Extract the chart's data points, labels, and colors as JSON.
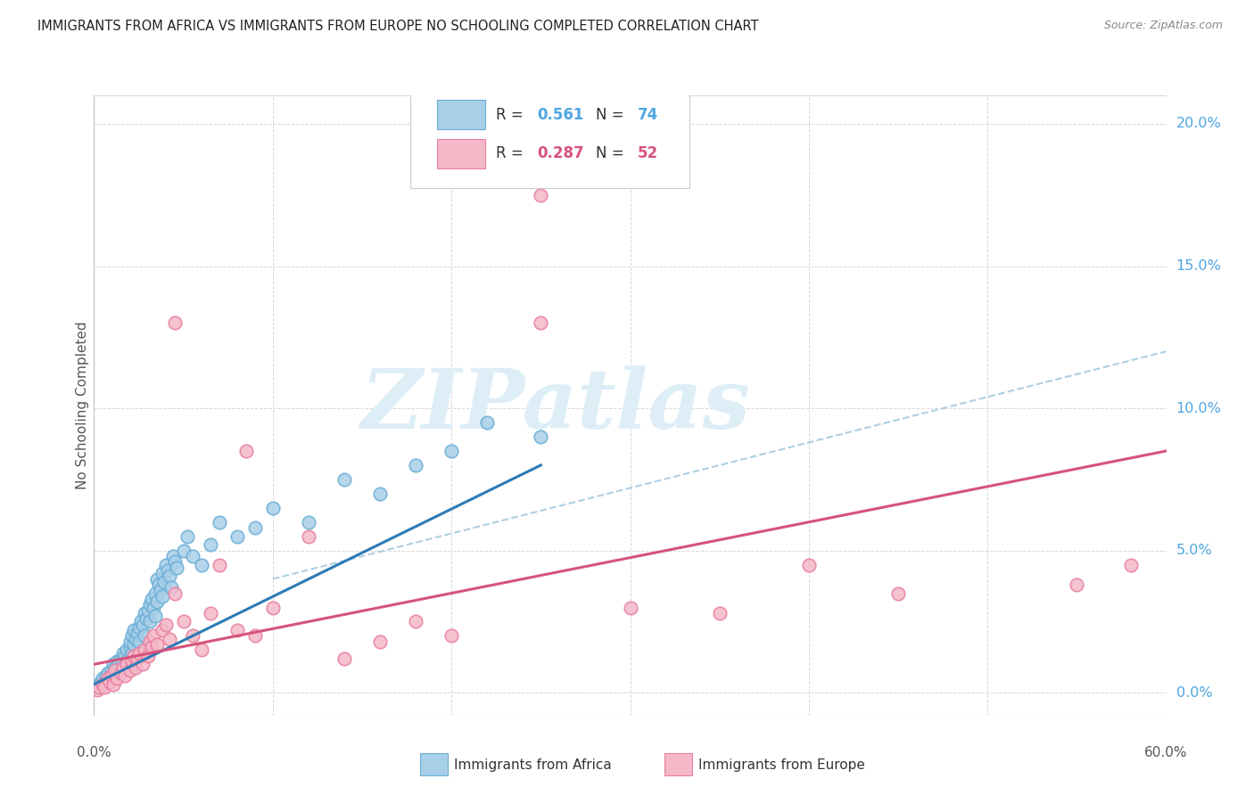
{
  "title": "IMMIGRANTS FROM AFRICA VS IMMIGRANTS FROM EUROPE NO SCHOOLING COMPLETED CORRELATION CHART",
  "source": "Source: ZipAtlas.com",
  "ylabel": "No Schooling Completed",
  "africa_R": 0.561,
  "africa_N": 74,
  "europe_R": 0.287,
  "europe_N": 52,
  "africa_color": "#a8cfe8",
  "africa_edge_color": "#6baed6",
  "europe_color": "#f4b8c8",
  "europe_edge_color": "#e87fa0",
  "africa_line_color": "#2c7bb6",
  "europe_line_color": "#d6537a",
  "africa_dashed_color": "#92bfd9",
  "grid_color": "#d8d8d8",
  "right_tick_color": "#4da6e0",
  "title_color": "#222222",
  "source_color": "#888888",
  "axis_label_color": "#555555",
  "watermark_color": "#ddeef7",
  "legend_bg": "#ffffff",
  "legend_edge": "#cccccc",
  "xmin": 0.0,
  "xmax": 60.0,
  "ymin": -0.8,
  "ymax": 21.0,
  "y_right_ticks": [
    0.0,
    5.0,
    10.0,
    15.0,
    20.0
  ],
  "x_grid_ticks": [
    0,
    10,
    20,
    30,
    40,
    50,
    60
  ],
  "africa_line_x0": 0.0,
  "africa_line_y0": 0.3,
  "africa_line_x1": 25.0,
  "africa_line_y1": 8.0,
  "africa_dash_x0": 10.0,
  "africa_dash_y0": 4.0,
  "africa_dash_x1": 60.0,
  "africa_dash_y1": 12.0,
  "europe_line_x0": 0.0,
  "europe_line_y0": 1.0,
  "europe_line_x1": 60.0,
  "europe_line_y1": 8.5,
  "africa_x": [
    0.2,
    0.3,
    0.4,
    0.5,
    0.6,
    0.7,
    0.8,
    0.9,
    1.0,
    1.1,
    1.1,
    1.2,
    1.3,
    1.3,
    1.4,
    1.5,
    1.5,
    1.6,
    1.7,
    1.8,
    1.8,
    1.9,
    2.0,
    2.0,
    2.1,
    2.1,
    2.2,
    2.2,
    2.3,
    2.4,
    2.5,
    2.5,
    2.6,
    2.7,
    2.8,
    2.8,
    2.9,
    3.0,
    3.1,
    3.1,
    3.2,
    3.3,
    3.4,
    3.4,
    3.5,
    3.5,
    3.6,
    3.7,
    3.8,
    3.8,
    3.9,
    4.0,
    4.1,
    4.2,
    4.3,
    4.4,
    4.5,
    4.6,
    5.0,
    5.2,
    5.5,
    6.0,
    6.5,
    7.0,
    8.0,
    9.0,
    10.0,
    12.0,
    14.0,
    16.0,
    18.0,
    20.0,
    22.0,
    25.0
  ],
  "africa_y": [
    0.2,
    0.3,
    0.4,
    0.5,
    0.4,
    0.6,
    0.7,
    0.5,
    0.8,
    0.6,
    1.0,
    0.9,
    1.1,
    0.7,
    1.0,
    1.2,
    0.8,
    1.4,
    1.3,
    1.5,
    1.0,
    1.2,
    1.6,
    1.8,
    1.4,
    2.0,
    1.7,
    2.2,
    1.9,
    2.1,
    2.3,
    1.8,
    2.5,
    2.4,
    2.0,
    2.8,
    2.6,
    2.9,
    3.1,
    2.5,
    3.3,
    3.0,
    3.5,
    2.7,
    3.2,
    4.0,
    3.8,
    3.6,
    3.4,
    4.2,
    3.9,
    4.5,
    4.3,
    4.1,
    3.7,
    4.8,
    4.6,
    4.4,
    5.0,
    5.5,
    4.8,
    4.5,
    5.2,
    6.0,
    5.5,
    5.8,
    6.5,
    6.0,
    7.5,
    7.0,
    8.0,
    8.5,
    9.5,
    9.0
  ],
  "europe_x": [
    0.2,
    0.3,
    0.5,
    0.6,
    0.8,
    0.9,
    1.0,
    1.1,
    1.2,
    1.3,
    1.5,
    1.6,
    1.7,
    1.8,
    2.0,
    2.1,
    2.2,
    2.3,
    2.4,
    2.5,
    2.7,
    2.8,
    3.0,
    3.1,
    3.2,
    3.3,
    3.5,
    3.8,
    4.0,
    4.2,
    4.5,
    5.0,
    5.5,
    6.0,
    6.5,
    7.0,
    8.0,
    8.5,
    9.0,
    10.0,
    12.0,
    14.0,
    16.0,
    18.0,
    20.0,
    25.0,
    30.0,
    35.0,
    40.0,
    45.0,
    55.0,
    58.0
  ],
  "europe_y": [
    0.1,
    0.2,
    0.3,
    0.2,
    0.5,
    0.4,
    0.6,
    0.3,
    0.8,
    0.5,
    0.7,
    0.9,
    0.6,
    1.0,
    0.8,
    1.1,
    1.3,
    0.9,
    1.2,
    1.4,
    1.0,
    1.5,
    1.3,
    1.8,
    1.6,
    2.0,
    1.7,
    2.2,
    2.4,
    1.9,
    3.5,
    2.5,
    2.0,
    1.5,
    2.8,
    4.5,
    2.2,
    8.5,
    2.0,
    3.0,
    5.5,
    1.2,
    1.8,
    2.5,
    2.0,
    13.0,
    3.0,
    2.8,
    4.5,
    3.5,
    3.8,
    4.5
  ],
  "europe_outlier_x": [
    25.0
  ],
  "europe_outlier_y": [
    17.5
  ],
  "europe_outlier2_x": [
    4.5
  ],
  "europe_outlier2_y": [
    13.0
  ],
  "figsize": [
    14.06,
    8.92
  ],
  "dpi": 100
}
